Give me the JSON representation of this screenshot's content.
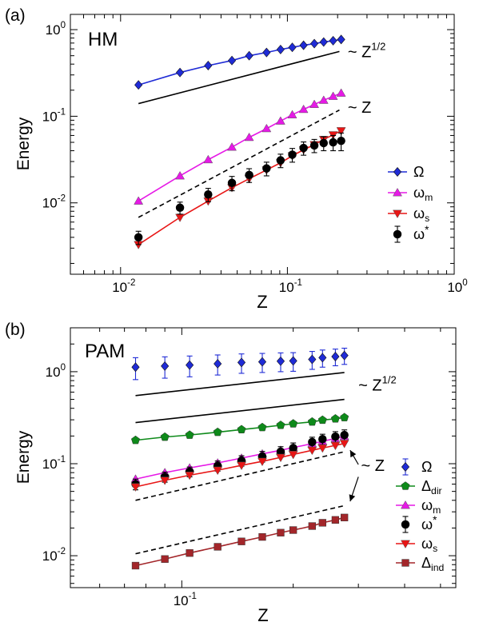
{
  "chart_data": [
    {
      "panel_label": "(a)",
      "model_label": "HM",
      "type": "scatter",
      "xlabel": "Z",
      "ylabel": "Energy",
      "xscale": "log",
      "yscale": "log",
      "xlim": [
        0.005,
        1.0
      ],
      "ylim": [
        0.0015,
        1.5
      ],
      "xticks": [
        {
          "v": 0.01,
          "base": "10",
          "exp": "-2"
        },
        {
          "v": 0.1,
          "base": "10",
          "exp": "-1"
        },
        {
          "v": 1.0,
          "base": "10",
          "exp": "0"
        }
      ],
      "yticks": [
        {
          "v": 0.01,
          "base": "10",
          "exp": "-2"
        },
        {
          "v": 0.1,
          "base": "10",
          "exp": "-1"
        },
        {
          "v": 1.0,
          "base": "10",
          "exp": "0"
        }
      ],
      "legend_position": "bottom-right",
      "series": [
        {
          "name": "Ω",
          "name_main": "Ω",
          "name_sub": "",
          "name_sup": "",
          "color": "#1f2bd6",
          "marker": "diamond",
          "line": true,
          "x": [
            0.0128,
            0.0227,
            0.0335,
            0.0465,
            0.059,
            0.075,
            0.091,
            0.107,
            0.125,
            0.145,
            0.165,
            0.188,
            0.21
          ],
          "y": [
            0.23,
            0.32,
            0.385,
            0.44,
            0.5,
            0.545,
            0.59,
            0.625,
            0.66,
            0.69,
            0.72,
            0.745,
            0.77
          ],
          "err": null
        },
        {
          "name": "ωm",
          "name_main": "ω",
          "name_sub": "m",
          "name_sup": "",
          "color": "#e619e6",
          "marker": "triangle-up",
          "line": true,
          "x": [
            0.0128,
            0.0227,
            0.0335,
            0.0465,
            0.059,
            0.075,
            0.091,
            0.107,
            0.125,
            0.145,
            0.165,
            0.188,
            0.21
          ],
          "y": [
            0.0105,
            0.0205,
            0.0315,
            0.044,
            0.057,
            0.072,
            0.088,
            0.104,
            0.12,
            0.137,
            0.153,
            0.17,
            0.185
          ],
          "err": null
        },
        {
          "name": "ωs",
          "name_main": "ω",
          "name_sub": "s",
          "name_sup": "",
          "color": "#e81515",
          "marker": "triangle-down",
          "line": true,
          "x": [
            0.0128,
            0.0227,
            0.0335,
            0.0465,
            0.059,
            0.075,
            0.091,
            0.107,
            0.125,
            0.145,
            0.165,
            0.188,
            0.21
          ],
          "y": [
            0.0033,
            0.0068,
            0.0105,
            0.015,
            0.019,
            0.024,
            0.029,
            0.035,
            0.041,
            0.047,
            0.054,
            0.061,
            0.068
          ],
          "err": null
        },
        {
          "name": "ω*",
          "name_main": "ω",
          "name_sub": "",
          "name_sup": "*",
          "color": "#000000",
          "marker": "circle",
          "line": false,
          "x": [
            0.0128,
            0.0227,
            0.0335,
            0.0465,
            0.059,
            0.075,
            0.091,
            0.107,
            0.125,
            0.145,
            0.165,
            0.188,
            0.21
          ],
          "y": [
            0.004,
            0.0088,
            0.0125,
            0.017,
            0.021,
            0.025,
            0.031,
            0.036,
            0.043,
            0.046,
            0.049,
            0.05,
            0.052
          ],
          "err": [
            0.0007,
            0.0014,
            0.0022,
            0.0032,
            0.0038,
            0.0045,
            0.0055,
            0.0065,
            0.0075,
            0.008,
            0.009,
            0.01,
            0.012
          ]
        }
      ],
      "guides": [
        {
          "label": "~ Z",
          "label_sup": "1/2",
          "style": "solid",
          "x": [
            0.0128,
            0.205
          ],
          "y": [
            0.14,
            0.56
          ],
          "label_x": 0.23,
          "label_y": 0.56
        },
        {
          "label": "~ Z",
          "label_sup": "",
          "style": "dashed",
          "x": [
            0.0128,
            0.205
          ],
          "y": [
            0.0068,
            0.118
          ],
          "label_x": 0.23,
          "label_y": 0.128
        }
      ]
    },
    {
      "panel_label": "(b)",
      "model_label": "PAM",
      "type": "scatter",
      "xlabel": "Z",
      "ylabel": "Energy",
      "xscale": "log",
      "yscale": "log",
      "xlim": [
        0.05,
        0.55
      ],
      "ylim": [
        0.0045,
        3.0
      ],
      "xticks": [
        {
          "v": 0.1,
          "base": "10",
          "exp": "-1"
        }
      ],
      "yticks": [
        {
          "v": 0.01,
          "base": "10",
          "exp": "-2"
        },
        {
          "v": 0.1,
          "base": "10",
          "exp": "-1"
        },
        {
          "v": 1.0,
          "base": "10",
          "exp": "0"
        }
      ],
      "legend_position": "bottom-right",
      "series": [
        {
          "name": "Ω",
          "name_main": "Ω",
          "name_sub": "",
          "name_sup": "",
          "color": "#1f2bd6",
          "marker": "diamond",
          "line": false,
          "x": [
            0.075,
            0.09,
            0.105,
            0.125,
            0.145,
            0.165,
            0.185,
            0.2,
            0.225,
            0.24,
            0.26,
            0.275
          ],
          "y": [
            1.12,
            1.15,
            1.18,
            1.22,
            1.26,
            1.28,
            1.3,
            1.31,
            1.36,
            1.42,
            1.46,
            1.5
          ],
          "err": [
            0.3,
            0.3,
            0.3,
            0.3,
            0.3,
            0.3,
            0.3,
            0.3,
            0.3,
            0.3,
            0.3,
            0.3
          ]
        },
        {
          "name": "Δdir",
          "name_main": "Δ",
          "name_sub": "dir",
          "name_sup": "",
          "color": "#0e8a1a",
          "marker": "pentagon",
          "line": true,
          "x": [
            0.075,
            0.09,
            0.105,
            0.125,
            0.145,
            0.165,
            0.185,
            0.2,
            0.225,
            0.24,
            0.26,
            0.275
          ],
          "y": [
            0.18,
            0.195,
            0.205,
            0.22,
            0.235,
            0.248,
            0.262,
            0.272,
            0.285,
            0.298,
            0.308,
            0.318
          ],
          "err": null
        },
        {
          "name": "ωm",
          "name_main": "ω",
          "name_sub": "m",
          "name_sup": "",
          "color": "#e619e6",
          "marker": "triangle-up",
          "line": true,
          "x": [
            0.075,
            0.09,
            0.105,
            0.125,
            0.145,
            0.165,
            0.185,
            0.2,
            0.225,
            0.24,
            0.26,
            0.275
          ],
          "y": [
            0.068,
            0.08,
            0.09,
            0.102,
            0.115,
            0.128,
            0.14,
            0.15,
            0.165,
            0.175,
            0.188,
            0.198
          ],
          "err": null
        },
        {
          "name": "ω*",
          "name_main": "ω",
          "name_sub": "",
          "name_sup": "*",
          "color": "#000000",
          "marker": "circle",
          "line": false,
          "x": [
            0.075,
            0.09,
            0.105,
            0.125,
            0.145,
            0.165,
            0.185,
            0.2,
            0.225,
            0.24,
            0.26,
            0.275
          ],
          "y": [
            0.06,
            0.072,
            0.082,
            0.095,
            0.108,
            0.12,
            0.135,
            0.148,
            0.172,
            0.185,
            0.197,
            0.205
          ],
          "err": [
            0.008,
            0.009,
            0.01,
            0.012,
            0.014,
            0.016,
            0.018,
            0.02,
            0.022,
            0.024,
            0.026,
            0.028
          ]
        },
        {
          "name": "ωs",
          "name_main": "ω",
          "name_sub": "s",
          "name_sup": "",
          "color": "#e81515",
          "marker": "triangle-down",
          "line": true,
          "x": [
            0.075,
            0.09,
            0.105,
            0.125,
            0.145,
            0.165,
            0.185,
            0.2,
            0.225,
            0.24,
            0.26,
            0.275
          ],
          "y": [
            0.056,
            0.066,
            0.075,
            0.085,
            0.096,
            0.106,
            0.117,
            0.126,
            0.14,
            0.148,
            0.158,
            0.166
          ],
          "err": null
        },
        {
          "name": "Δind",
          "name_main": "Δ",
          "name_sub": "ind",
          "name_sup": "",
          "color": "#a3262a",
          "marker": "square",
          "line": true,
          "x": [
            0.075,
            0.09,
            0.105,
            0.125,
            0.145,
            0.165,
            0.185,
            0.2,
            0.225,
            0.24,
            0.26,
            0.275
          ],
          "y": [
            0.0078,
            0.0092,
            0.0107,
            0.0125,
            0.0143,
            0.016,
            0.0178,
            0.019,
            0.021,
            0.0228,
            0.0245,
            0.026
          ],
          "err": null
        }
      ],
      "guides": [
        {
          "label": "",
          "label_sup": "",
          "style": "solid",
          "x": [
            0.075,
            0.275
          ],
          "y": [
            0.55,
            0.98
          ],
          "label_x": null,
          "label_y": null
        },
        {
          "label": "",
          "label_sup": "",
          "style": "solid",
          "x": [
            0.075,
            0.275
          ],
          "y": [
            0.28,
            0.5
          ],
          "label_x": null,
          "label_y": null
        },
        {
          "label": "",
          "label_sup": "",
          "style": "dashed",
          "x": [
            0.075,
            0.275
          ],
          "y": [
            0.04,
            0.135
          ],
          "label_x": null,
          "label_y": null
        },
        {
          "label": "",
          "label_sup": "",
          "style": "dashed",
          "x": [
            0.075,
            0.275
          ],
          "y": [
            0.0105,
            0.035
          ],
          "label_x": null,
          "label_y": null
        }
      ],
      "annotations": [
        {
          "text": "~ Z",
          "text_sup": "1/2",
          "x": 0.3,
          "y": 0.72
        },
        {
          "text": "~ Z",
          "text_sup": "",
          "x": 0.305,
          "y": 0.096
        }
      ],
      "arrows": [
        {
          "from_x": 0.3,
          "from_y": 0.098,
          "to_x": 0.285,
          "to_y": 0.14
        },
        {
          "from_x": 0.3,
          "from_y": 0.072,
          "to_x": 0.285,
          "to_y": 0.039
        }
      ]
    }
  ]
}
